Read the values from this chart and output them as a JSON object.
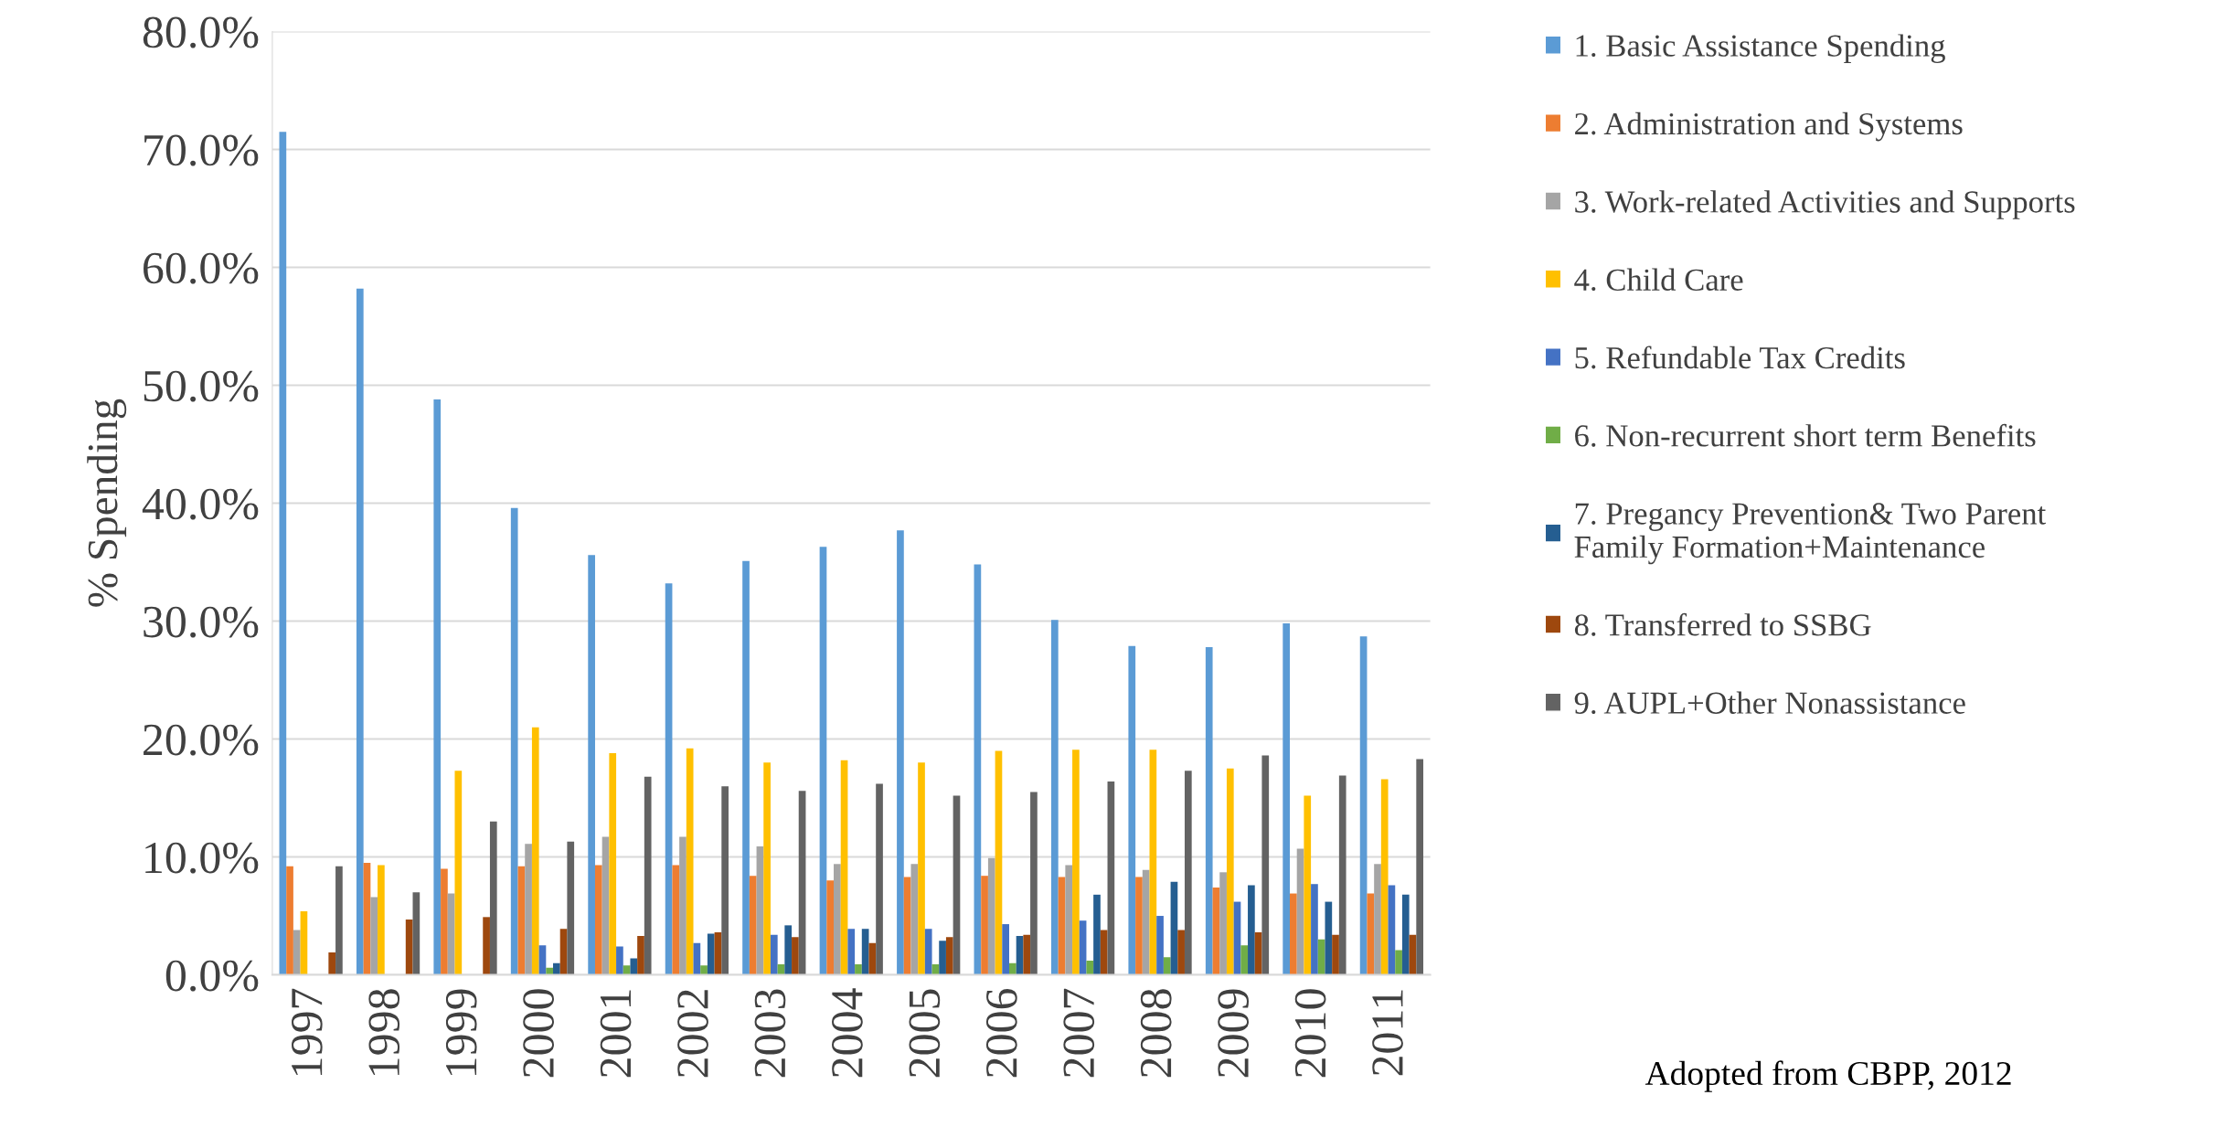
{
  "chart_data": {
    "type": "bar",
    "ylabel": "% Spending",
    "categories": [
      "1997",
      "1998",
      "1999",
      "2000",
      "2001",
      "2002",
      "2003",
      "2004",
      "2005",
      "2006",
      "2007",
      "2008",
      "2009",
      "2010",
      "2011"
    ],
    "series": [
      {
        "name": "1. Basic Assistance Spending",
        "color": "#5b9bd5",
        "values": [
          71.5,
          58.2,
          48.8,
          39.6,
          35.6,
          33.2,
          35.1,
          36.3,
          37.7,
          34.8,
          30.1,
          27.9,
          27.8,
          29.8,
          28.7
        ]
      },
      {
        "name": "2. Administration and Systems",
        "color": "#ed7d31",
        "values": [
          9.2,
          9.5,
          9.0,
          9.2,
          9.3,
          9.3,
          8.4,
          8.0,
          8.3,
          8.4,
          8.3,
          8.3,
          7.4,
          6.9,
          6.9
        ]
      },
      {
        "name": "3. Work-related Activities and Supports",
        "color": "#a5a5a5",
        "values": [
          3.8,
          6.6,
          6.9,
          11.1,
          11.7,
          11.7,
          10.9,
          9.4,
          9.4,
          9.9,
          9.3,
          8.9,
          8.7,
          10.7,
          9.4
        ]
      },
      {
        "name": "4. Child Care",
        "color": "#ffc000",
        "values": [
          5.4,
          9.3,
          17.3,
          21.0,
          18.8,
          19.2,
          18.0,
          18.2,
          18.0,
          19.0,
          19.1,
          19.1,
          17.5,
          15.2,
          16.6
        ]
      },
      {
        "name": "5. Refundable Tax Credits",
        "color": "#4472c4",
        "values": [
          0,
          0,
          0,
          2.5,
          2.4,
          2.7,
          3.4,
          3.9,
          3.9,
          4.3,
          4.6,
          5.0,
          6.2,
          7.7,
          7.6
        ]
      },
      {
        "name": "6. Non-recurrent short term Benefits",
        "color": "#70ad47",
        "values": [
          0,
          0,
          0,
          0.6,
          0.8,
          0.8,
          0.9,
          0.9,
          0.9,
          1.0,
          1.2,
          1.5,
          2.5,
          3.0,
          2.1
        ]
      },
      {
        "name": "7. Pregancy Prevention& Two Parent\nFamily Formation+Maintenance",
        "color": "#255e91",
        "values": [
          0,
          0,
          0,
          1.0,
          1.4,
          3.5,
          4.2,
          3.9,
          2.9,
          3.3,
          6.8,
          7.9,
          7.6,
          6.2,
          6.8
        ]
      },
      {
        "name": "8. Transferred to SSBG",
        "color": "#9e480e",
        "values": [
          1.9,
          4.7,
          4.9,
          3.9,
          3.3,
          3.6,
          3.2,
          2.7,
          3.2,
          3.4,
          3.8,
          3.8,
          3.6,
          3.4,
          3.4
        ]
      },
      {
        "name": "9. AUPL+Other Nonassistance",
        "color": "#636363",
        "values": [
          9.2,
          7.0,
          13.0,
          11.3,
          16.8,
          16.0,
          15.6,
          16.2,
          15.2,
          15.5,
          16.4,
          17.3,
          18.6,
          16.9,
          18.3
        ]
      }
    ],
    "ylim": [
      0,
      80
    ],
    "yticks": [
      {
        "value": 0,
        "label": "0.0%"
      },
      {
        "value": 10,
        "label": "10.0%"
      },
      {
        "value": 20,
        "label": "20.0%"
      },
      {
        "value": 30,
        "label": "30.0%"
      },
      {
        "value": 40,
        "label": "40.0%"
      },
      {
        "value": 50,
        "label": "50.0%"
      },
      {
        "value": 60,
        "label": "60.0%"
      },
      {
        "value": 70,
        "label": "70.0%"
      },
      {
        "value": 80,
        "label": "80.0%"
      }
    ],
    "grid": "y",
    "legend": "right",
    "annotations": [
      "Adopted from CBPP, 2012"
    ]
  }
}
